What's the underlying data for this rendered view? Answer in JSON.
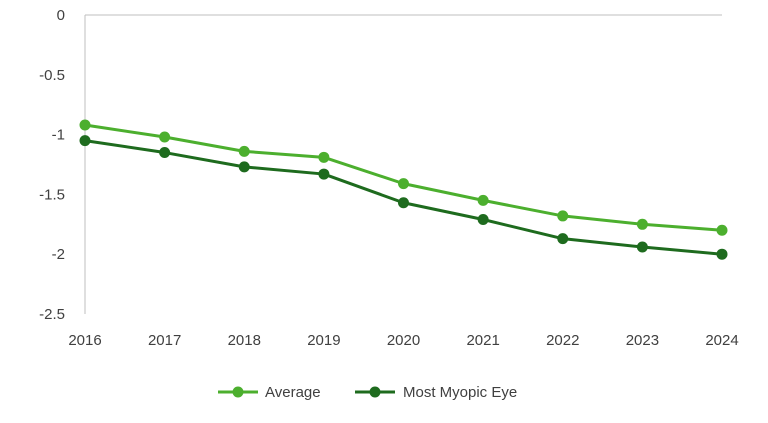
{
  "chart_data": {
    "type": "line",
    "categories": [
      "2016",
      "2017",
      "2018",
      "2019",
      "2020",
      "2021",
      "2022",
      "2023",
      "2024"
    ],
    "y_ticks": [
      "0",
      "-0.5",
      "-1",
      "-1.5",
      "-2",
      "-2.5"
    ],
    "y_tick_values": [
      0,
      -0.5,
      -1,
      -1.5,
      -2,
      -2.5
    ],
    "ylim": [
      -2.5,
      0
    ],
    "title": "",
    "xlabel": "",
    "ylabel": "",
    "grid": false,
    "legend_position": "bottom",
    "series": [
      {
        "name": "Average",
        "color": "#4caf2e",
        "values": [
          -0.92,
          -1.02,
          -1.14,
          -1.19,
          -1.41,
          -1.55,
          -1.68,
          -1.75,
          -1.8
        ]
      },
      {
        "name": "Most Myopic Eye",
        "color": "#1e6b1e",
        "values": [
          -1.05,
          -1.15,
          -1.27,
          -1.33,
          -1.57,
          -1.71,
          -1.87,
          -1.94,
          -2.0
        ]
      }
    ]
  }
}
